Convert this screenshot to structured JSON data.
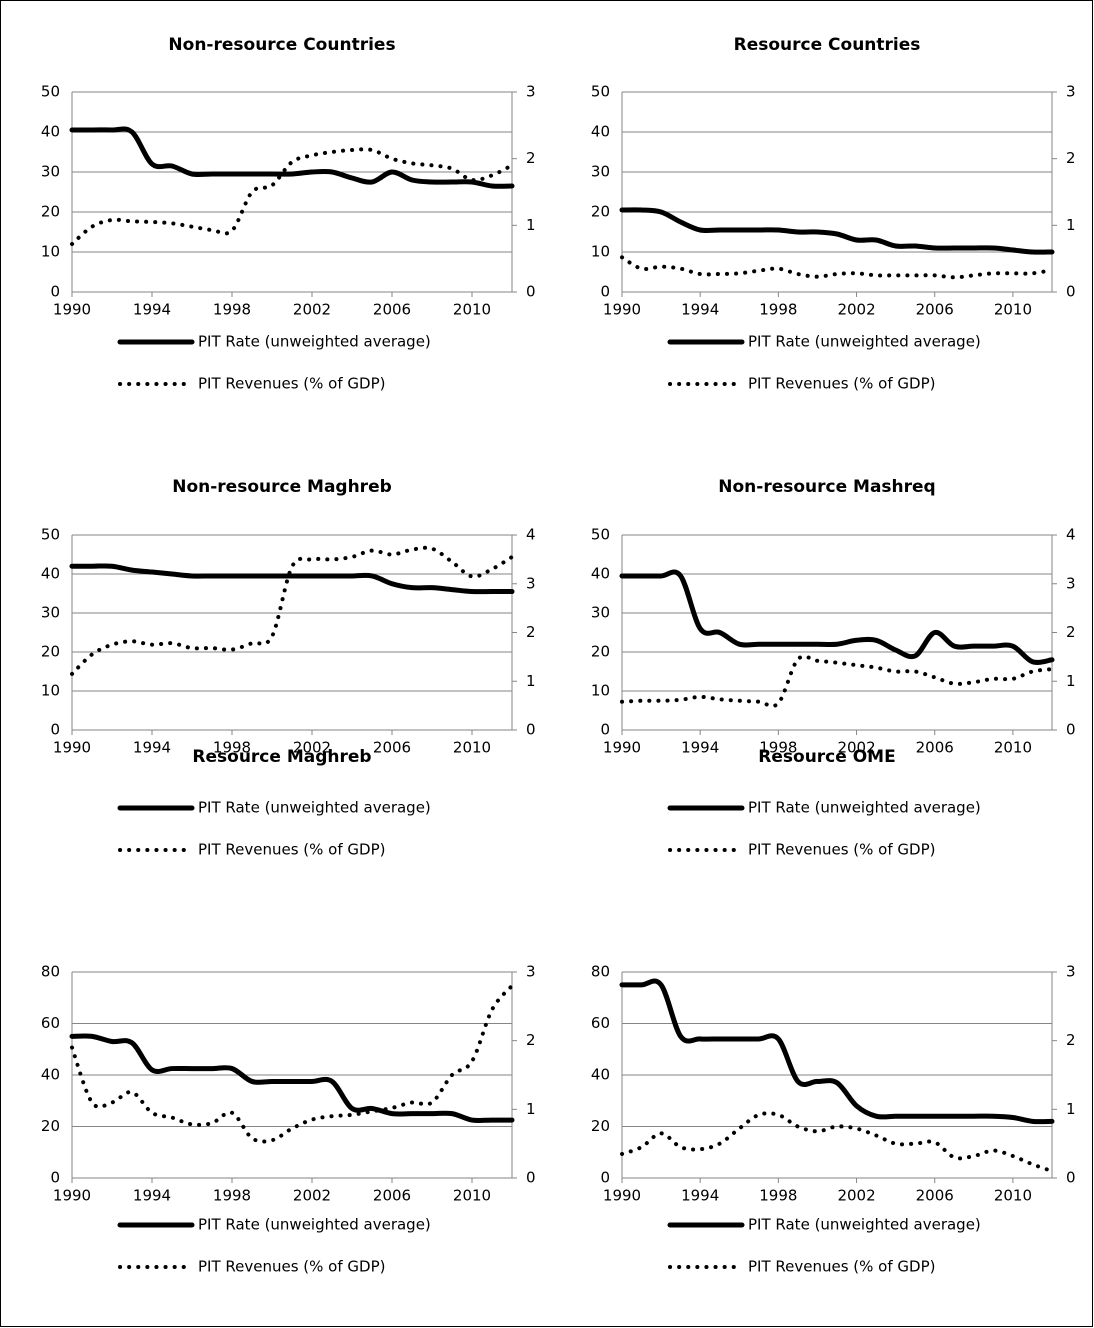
{
  "chart_data": [
    {
      "type": "line",
      "title": "Non-resource Countries",
      "grid": true,
      "x": [
        1990,
        1991,
        1992,
        1993,
        1994,
        1995,
        1996,
        1997,
        1998,
        1999,
        2000,
        2001,
        2002,
        2003,
        2004,
        2005,
        2006,
        2007,
        2008,
        2009,
        2010,
        2011,
        2012
      ],
      "xlim": [
        1990,
        2012
      ],
      "xticks": [
        1990,
        1994,
        1998,
        2002,
        2006,
        2010
      ],
      "ylim": [
        0,
        50
      ],
      "yticks": [
        0,
        10,
        20,
        30,
        40,
        50
      ],
      "y2lim": [
        0,
        3
      ],
      "y2ticks": [
        0,
        1,
        2,
        3
      ],
      "series": [
        {
          "name": "PIT Rate (unweighted average)",
          "color": "#000000",
          "style": "solid",
          "axis": "y",
          "values": [
            40.5,
            40.5,
            40.5,
            40,
            32,
            31.5,
            29.5,
            29.5,
            29.5,
            29.5,
            29.5,
            29.5,
            30,
            30,
            28.5,
            27.5,
            30,
            28,
            27.5,
            27.5,
            27.5,
            26.5,
            26.5
          ]
        },
        {
          "name": "PIT Revenues (% of GDP)",
          "color": "#000000",
          "style": "dotted",
          "axis": "y2",
          "values": [
            0.72,
            0.98,
            1.08,
            1.06,
            1.05,
            1.03,
            0.98,
            0.93,
            0.92,
            1.5,
            1.6,
            1.95,
            2.05,
            2.1,
            2.13,
            2.13,
            2.0,
            1.93,
            1.9,
            1.85,
            1.68,
            1.75,
            1.9
          ]
        }
      ]
    },
    {
      "type": "line",
      "title": "Resource Countries",
      "grid": true,
      "x": [
        1990,
        1991,
        1992,
        1993,
        1994,
        1995,
        1996,
        1997,
        1998,
        1999,
        2000,
        2001,
        2002,
        2003,
        2004,
        2005,
        2006,
        2007,
        2008,
        2009,
        2010,
        2011,
        2012
      ],
      "xlim": [
        1990,
        2012
      ],
      "xticks": [
        1990,
        1994,
        1998,
        2002,
        2006,
        2010
      ],
      "ylim": [
        0,
        50
      ],
      "yticks": [
        0,
        10,
        20,
        30,
        40,
        50
      ],
      "y2lim": [
        0,
        3
      ],
      "y2ticks": [
        0,
        1,
        2,
        3
      ],
      "series": [
        {
          "name": "PIT Rate (unweighted average)",
          "color": "#000000",
          "style": "solid",
          "axis": "y",
          "values": [
            20.5,
            20.5,
            20,
            17.5,
            15.5,
            15.5,
            15.5,
            15.5,
            15.5,
            15,
            15,
            14.5,
            13,
            13,
            11.5,
            11.5,
            11,
            11,
            11,
            11,
            10.5,
            10,
            10
          ]
        },
        {
          "name": "PIT Revenues (% of GDP)",
          "color": "#000000",
          "style": "dotted",
          "axis": "y2",
          "values": [
            0.52,
            0.35,
            0.38,
            0.35,
            0.27,
            0.27,
            0.28,
            0.32,
            0.35,
            0.27,
            0.23,
            0.27,
            0.28,
            0.25,
            0.25,
            0.25,
            0.25,
            0.22,
            0.25,
            0.28,
            0.28,
            0.28,
            0.33
          ]
        }
      ]
    },
    {
      "type": "line",
      "title": "Non-resource Maghreb",
      "grid": true,
      "x": [
        1990,
        1991,
        1992,
        1993,
        1994,
        1995,
        1996,
        1997,
        1998,
        1999,
        2000,
        2001,
        2002,
        2003,
        2004,
        2005,
        2006,
        2007,
        2008,
        2009,
        2010,
        2011,
        2012
      ],
      "xlim": [
        1990,
        2012
      ],
      "xticks": [
        1990,
        1994,
        1998,
        2002,
        2006,
        2010
      ],
      "ylim": [
        0,
        50
      ],
      "yticks": [
        0,
        10,
        20,
        30,
        40,
        50
      ],
      "y2lim": [
        0,
        4
      ],
      "y2ticks": [
        0,
        1,
        2,
        3,
        4
      ],
      "series": [
        {
          "name": "PIT Rate (unweighted average)",
          "color": "#000000",
          "style": "solid",
          "axis": "y",
          "values": [
            42,
            42,
            42,
            41,
            40.5,
            40,
            39.5,
            39.5,
            39.5,
            39.5,
            39.5,
            39.5,
            39.5,
            39.5,
            39.5,
            39.5,
            37.5,
            36.5,
            36.5,
            36,
            35.5,
            35.5,
            35.5
          ]
        },
        {
          "name": "PIT Revenues (% of GDP)",
          "color": "#000000",
          "style": "dotted",
          "axis": "y2",
          "values": [
            1.15,
            1.55,
            1.75,
            1.82,
            1.75,
            1.78,
            1.68,
            1.68,
            1.65,
            1.78,
            1.92,
            3.35,
            3.5,
            3.5,
            3.55,
            3.68,
            3.6,
            3.7,
            3.72,
            3.45,
            3.15,
            3.3,
            3.55
          ]
        }
      ]
    },
    {
      "type": "line",
      "title": "Non-resource Mashreq",
      "grid": true,
      "x": [
        1990,
        1991,
        1992,
        1993,
        1994,
        1995,
        1996,
        1997,
        1998,
        1999,
        2000,
        2001,
        2002,
        2003,
        2004,
        2005,
        2006,
        2007,
        2008,
        2009,
        2010,
        2011,
        2012
      ],
      "xlim": [
        1990,
        2012
      ],
      "xticks": [
        1990,
        1994,
        1998,
        2002,
        2006,
        2010
      ],
      "ylim": [
        0,
        50
      ],
      "yticks": [
        0,
        10,
        20,
        30,
        40,
        50
      ],
      "y2lim": [
        0,
        4
      ],
      "y2ticks": [
        0,
        1,
        2,
        3,
        4
      ],
      "series": [
        {
          "name": "PIT Rate (unweighted average)",
          "color": "#000000",
          "style": "solid",
          "axis": "y",
          "values": [
            39.5,
            39.5,
            39.5,
            39.5,
            26,
            25,
            22,
            22,
            22,
            22,
            22,
            22,
            23,
            23,
            20.5,
            19,
            25,
            21.5,
            21.5,
            21.5,
            21.5,
            17.5,
            18
          ]
        },
        {
          "name": "PIT Revenues (% of GDP)",
          "color": "#000000",
          "style": "dotted",
          "axis": "y2",
          "values": [
            0.58,
            0.6,
            0.6,
            0.62,
            0.68,
            0.63,
            0.6,
            0.58,
            0.55,
            1.45,
            1.42,
            1.38,
            1.33,
            1.28,
            1.2,
            1.2,
            1.08,
            0.95,
            0.98,
            1.05,
            1.05,
            1.2,
            1.25
          ]
        }
      ]
    },
    {
      "type": "line",
      "title": "Resource Maghreb",
      "grid": true,
      "x": [
        1990,
        1991,
        1992,
        1993,
        1994,
        1995,
        1996,
        1997,
        1998,
        1999,
        2000,
        2001,
        2002,
        2003,
        2004,
        2005,
        2006,
        2007,
        2008,
        2009,
        2010,
        2011,
        2012
      ],
      "xlim": [
        1990,
        2012
      ],
      "xticks": [
        1990,
        1994,
        1998,
        2002,
        2006,
        2010
      ],
      "ylim": [
        0,
        80
      ],
      "yticks": [
        0,
        20,
        40,
        60,
        80
      ],
      "y2lim": [
        0,
        3
      ],
      "y2ticks": [
        0,
        1,
        2,
        3
      ],
      "series": [
        {
          "name": "PIT Rate (unweighted average)",
          "color": "#000000",
          "style": "solid",
          "axis": "y",
          "values": [
            55,
            55,
            53,
            52.5,
            42,
            42.5,
            42.5,
            42.5,
            42.5,
            37.5,
            37.5,
            37.5,
            37.5,
            37.5,
            27,
            27,
            25,
            25,
            25,
            25,
            22.5,
            22.5,
            22.5
          ]
        },
        {
          "name": "PIT Revenues (% of GDP)",
          "color": "#000000",
          "style": "dotted",
          "axis": "y2",
          "values": [
            1.9,
            1.1,
            1.1,
            1.25,
            0.95,
            0.88,
            0.78,
            0.8,
            0.95,
            0.58,
            0.55,
            0.72,
            0.85,
            0.9,
            0.92,
            0.97,
            1.02,
            1.1,
            1.1,
            1.5,
            1.7,
            2.45,
            2.8
          ]
        }
      ]
    },
    {
      "type": "line",
      "title": "Resource OME",
      "grid": true,
      "x": [
        1990,
        1991,
        1992,
        1993,
        1994,
        1995,
        1996,
        1997,
        1998,
        1999,
        2000,
        2001,
        2002,
        2003,
        2004,
        2005,
        2006,
        2007,
        2008,
        2009,
        2010,
        2011,
        2012
      ],
      "xlim": [
        1990,
        2012
      ],
      "xticks": [
        1990,
        1994,
        1998,
        2002,
        2006,
        2010
      ],
      "ylim": [
        0,
        80
      ],
      "yticks": [
        0,
        20,
        40,
        60,
        80
      ],
      "y2lim": [
        0,
        3
      ],
      "y2ticks": [
        0,
        1,
        2,
        3
      ],
      "series": [
        {
          "name": "PIT Rate (unweighted average)",
          "color": "#000000",
          "style": "solid",
          "axis": "y",
          "values": [
            75,
            75,
            75,
            55,
            54,
            54,
            54,
            54,
            54,
            37.5,
            37.5,
            37,
            28,
            24,
            24,
            24,
            24,
            24,
            24,
            24,
            23.5,
            22,
            22
          ]
        },
        {
          "name": "PIT Revenues (% of GDP)",
          "color": "#000000",
          "style": "dotted",
          "axis": "y2",
          "values": [
            0.35,
            0.45,
            0.65,
            0.45,
            0.42,
            0.5,
            0.72,
            0.92,
            0.92,
            0.75,
            0.68,
            0.75,
            0.72,
            0.62,
            0.5,
            0.5,
            0.52,
            0.3,
            0.32,
            0.4,
            0.32,
            0.2,
            0.1
          ]
        }
      ]
    }
  ]
}
